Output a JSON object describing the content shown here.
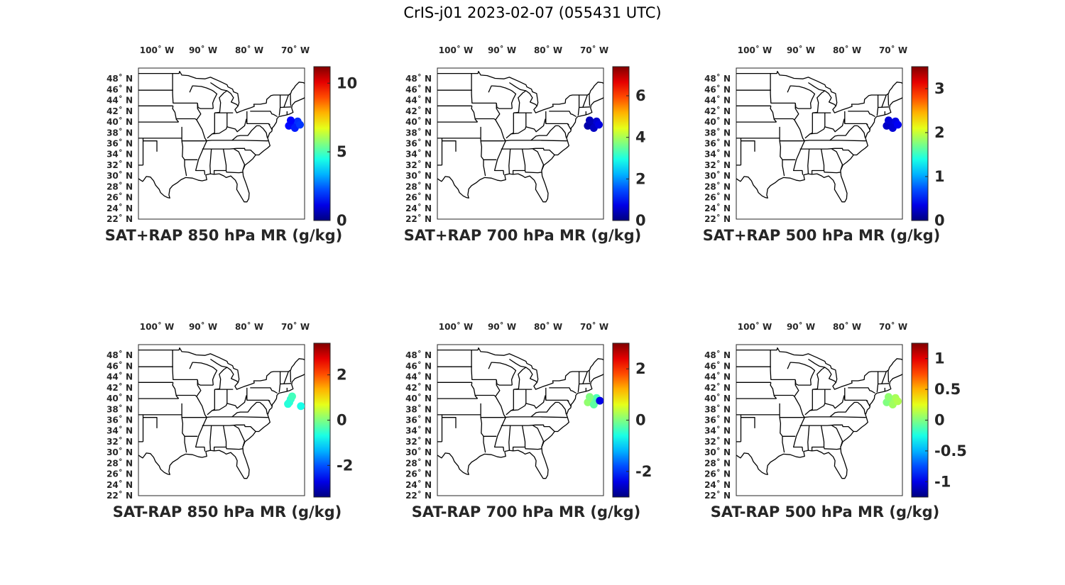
{
  "figure": {
    "title": "CrIS-j01 2023-02-07 (055431 UTC)"
  },
  "map": {
    "lon_range": [
      -104,
      -68
    ],
    "lat_range": [
      22,
      50
    ],
    "lon_ticks": [
      {
        "value": -100,
        "label": "100˚ W"
      },
      {
        "value": -90,
        "label": "90˚ W"
      },
      {
        "value": -80,
        "label": "80˚ W"
      },
      {
        "value": -70,
        "label": "70˚ W"
      }
    ],
    "lat_ticks": [
      {
        "value": 22,
        "label": "22˚ N"
      },
      {
        "value": 24,
        "label": "24˚ N"
      },
      {
        "value": 26,
        "label": "26˚ N"
      },
      {
        "value": 28,
        "label": "28˚ N"
      },
      {
        "value": 30,
        "label": "30˚ N"
      },
      {
        "value": 32,
        "label": "32˚ N"
      },
      {
        "value": 34,
        "label": "34˚ N"
      },
      {
        "value": 36,
        "label": "36˚ N"
      },
      {
        "value": 38,
        "label": "38˚ N"
      },
      {
        "value": 40,
        "label": "40˚ N"
      },
      {
        "value": 42,
        "label": "42˚ N"
      },
      {
        "value": 44,
        "label": "44˚ N"
      },
      {
        "value": 46,
        "label": "46˚ N"
      },
      {
        "value": 48,
        "label": "48˚ N"
      }
    ],
    "colormap": "jet",
    "outline_color": "#000000"
  },
  "panels": [
    {
      "caption": "SAT+RAP 850 hPa MR (g/kg)",
      "clim": [
        0,
        11.2
      ],
      "ticks": [
        "0",
        "5",
        "10"
      ],
      "tick_values": [
        0,
        5,
        10
      ],
      "points": [
        {
          "lon": -70.5,
          "lat": 39.8,
          "value": 1.6
        },
        {
          "lon": -69.5,
          "lat": 40.1,
          "value": 1.9
        },
        {
          "lon": -71.4,
          "lat": 39.3,
          "value": 1.5
        },
        {
          "lon": -70.1,
          "lat": 38.9,
          "value": 1.7
        },
        {
          "lon": -69.0,
          "lat": 39.5,
          "value": 2.0
        },
        {
          "lon": -71.0,
          "lat": 40.3,
          "value": 1.4
        }
      ]
    },
    {
      "caption": "SAT+RAP 700 hPa MR (g/kg)",
      "clim": [
        0,
        7.4
      ],
      "ticks": [
        "0",
        "2",
        "4",
        "6"
      ],
      "tick_values": [
        0,
        2,
        4,
        6
      ],
      "points": [
        {
          "lon": -70.5,
          "lat": 39.8,
          "value": 0.4
        },
        {
          "lon": -69.5,
          "lat": 40.1,
          "value": 0.6
        },
        {
          "lon": -71.4,
          "lat": 39.3,
          "value": 0.3
        },
        {
          "lon": -70.1,
          "lat": 38.9,
          "value": 0.5
        },
        {
          "lon": -69.0,
          "lat": 39.5,
          "value": 0.7
        },
        {
          "lon": -71.0,
          "lat": 40.3,
          "value": 0.4
        }
      ]
    },
    {
      "caption": "SAT+RAP 500 hPa MR (g/kg)",
      "clim": [
        0,
        3.5
      ],
      "ticks": [
        "0",
        "1",
        "2",
        "3"
      ],
      "tick_values": [
        0,
        1,
        2,
        3
      ],
      "points": [
        {
          "lon": -70.5,
          "lat": 39.8,
          "value": 0.3
        },
        {
          "lon": -69.5,
          "lat": 40.1,
          "value": 0.35
        },
        {
          "lon": -71.4,
          "lat": 39.3,
          "value": 0.25
        },
        {
          "lon": -70.1,
          "lat": 38.9,
          "value": 0.3
        },
        {
          "lon": -69.0,
          "lat": 39.5,
          "value": 0.4
        },
        {
          "lon": -71.0,
          "lat": 40.3,
          "value": 0.3
        }
      ]
    },
    {
      "caption": "SAT-RAP 850 hPa MR (g/kg)",
      "clim": [
        -3.4,
        3.4
      ],
      "ticks": [
        "-2",
        "0",
        "2"
      ],
      "tick_values": [
        -2,
        0,
        2
      ],
      "points": [
        {
          "lon": -71.0,
          "lat": 39.9,
          "value": -0.6
        },
        {
          "lon": -71.3,
          "lat": 39.3,
          "value": -0.5
        },
        {
          "lon": -70.7,
          "lat": 40.4,
          "value": -0.4
        },
        {
          "lon": -71.6,
          "lat": 39.0,
          "value": -0.6
        },
        {
          "lon": -68.8,
          "lat": 38.6,
          "value": -0.7
        }
      ]
    },
    {
      "caption": "SAT-RAP 700 hPa MR (g/kg)",
      "clim": [
        -3.0,
        3.0
      ],
      "ticks": [
        "-2",
        "0",
        "2"
      ],
      "tick_values": [
        -2,
        0,
        2
      ],
      "points": [
        {
          "lon": -70.5,
          "lat": 39.8,
          "value": -0.1
        },
        {
          "lon": -69.5,
          "lat": 40.1,
          "value": -0.3
        },
        {
          "lon": -71.4,
          "lat": 39.3,
          "value": 0.1
        },
        {
          "lon": -70.1,
          "lat": 38.9,
          "value": -0.2
        },
        {
          "lon": -68.8,
          "lat": 39.6,
          "value": -2.4
        },
        {
          "lon": -71.0,
          "lat": 40.3,
          "value": 0.0
        }
      ]
    },
    {
      "caption": "SAT-RAP 500 hPa MR (g/kg)",
      "clim": [
        -1.25,
        1.25
      ],
      "ticks": [
        "-1",
        "-0.5",
        "0",
        "0.5",
        "1"
      ],
      "tick_values": [
        -1,
        -0.5,
        0,
        0.5,
        1
      ],
      "points": [
        {
          "lon": -70.5,
          "lat": 39.8,
          "value": 0.05
        },
        {
          "lon": -69.5,
          "lat": 40.1,
          "value": 0.1
        },
        {
          "lon": -71.4,
          "lat": 39.3,
          "value": 0.0
        },
        {
          "lon": -70.1,
          "lat": 38.9,
          "value": 0.08
        },
        {
          "lon": -69.0,
          "lat": 39.5,
          "value": 0.12
        },
        {
          "lon": -71.0,
          "lat": 40.3,
          "value": 0.04
        }
      ]
    }
  ]
}
